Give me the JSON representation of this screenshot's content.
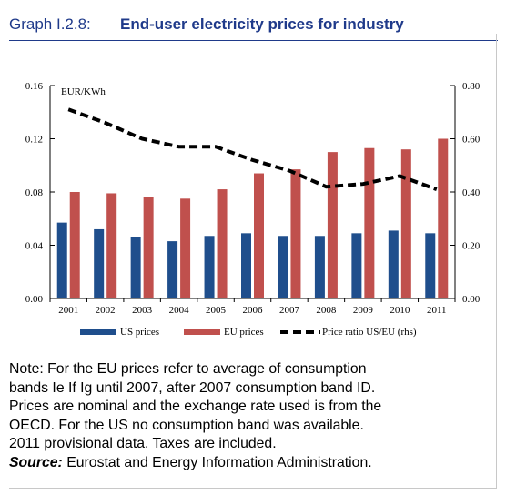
{
  "header": {
    "label": "Graph I.2.8:",
    "title": "End-user electricity prices for industry"
  },
  "chart_data": {
    "type": "bar",
    "unit_label": "EUR/KWh",
    "categories": [
      "2001",
      "2002",
      "2003",
      "2004",
      "2005",
      "2006",
      "2007",
      "2008",
      "2009",
      "2010",
      "2011"
    ],
    "series": [
      {
        "name": "US prices",
        "type": "bar",
        "axis": "left",
        "color": "#1f4e8c",
        "values": [
          0.057,
          0.052,
          0.046,
          0.043,
          0.047,
          0.049,
          0.047,
          0.047,
          0.049,
          0.051,
          0.049
        ]
      },
      {
        "name": "EU prices",
        "type": "bar",
        "axis": "left",
        "color": "#c0504d",
        "values": [
          0.08,
          0.079,
          0.076,
          0.075,
          0.082,
          0.094,
          0.097,
          0.11,
          0.113,
          0.112,
          0.12
        ]
      },
      {
        "name": "Price ratio US/EU (rhs)",
        "type": "line",
        "axis": "right",
        "style": "dashed",
        "color": "#000000",
        "values": [
          0.71,
          0.66,
          0.6,
          0.57,
          0.57,
          0.52,
          0.48,
          0.42,
          0.43,
          0.46,
          0.41
        ]
      }
    ],
    "ylim_left": [
      0,
      0.16
    ],
    "yticks_left": [
      "0.00",
      "0.04",
      "0.08",
      "0.12",
      "0.16"
    ],
    "ylim_right": [
      0,
      0.8
    ],
    "yticks_right": [
      "0.00",
      "0.20",
      "0.40",
      "0.60",
      "0.80"
    ],
    "grid": false,
    "legend_position": "bottom"
  },
  "notes": {
    "lines": [
      "Note: For the EU prices refer to average of consumption",
      "bands Ie If Ig until 2007, after 2007 consumption band ID.",
      "Prices are nominal and the exchange rate used is from the",
      "OECD. For the US no consumption band was available.",
      "2011 provisional data. Taxes are included."
    ],
    "source_label": "Source:",
    "source_text": " Eurostat and Energy Information Administration."
  }
}
